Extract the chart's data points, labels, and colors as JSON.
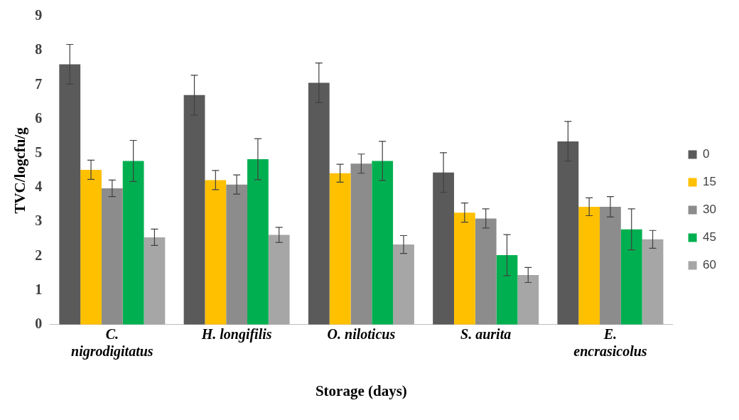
{
  "chart_data": {
    "type": "bar",
    "xlabel": "Storage (days)",
    "ylabel": "TVC/logcfu/g",
    "categories": [
      "C. nigrodigitatus",
      "H. longifilis",
      "O. niloticus",
      "S. aurita",
      "E. encrasicolus"
    ],
    "ylim": [
      0,
      9
    ],
    "yticks": [
      0,
      1,
      2,
      3,
      4,
      5,
      6,
      7,
      8,
      9
    ],
    "grid": false,
    "legend": "right",
    "series": [
      {
        "name": "0",
        "color": "#5a5a5a",
        "values": [
          7.6,
          6.7,
          7.06,
          4.44,
          5.35
        ],
        "errors": [
          0.58,
          0.58,
          0.58,
          0.58,
          0.58
        ]
      },
      {
        "name": "15",
        "color": "#ffc000",
        "values": [
          4.52,
          4.22,
          4.42,
          3.27,
          3.44
        ],
        "errors": [
          0.28,
          0.28,
          0.26,
          0.28,
          0.26
        ]
      },
      {
        "name": "30",
        "color": "#8c8c8c",
        "values": [
          3.98,
          4.09,
          4.7,
          3.1,
          3.44
        ],
        "errors": [
          0.24,
          0.28,
          0.28,
          0.28,
          0.3
        ]
      },
      {
        "name": "45",
        "color": "#00b050",
        "values": [
          4.78,
          4.83,
          4.78,
          2.03,
          2.78
        ],
        "errors": [
          0.6,
          0.6,
          0.57,
          0.6,
          0.6
        ]
      },
      {
        "name": "60",
        "color": "#a6a6a6",
        "values": [
          2.55,
          2.62,
          2.34,
          1.45,
          2.49
        ],
        "errors": [
          0.24,
          0.22,
          0.26,
          0.22,
          0.26
        ]
      }
    ]
  }
}
